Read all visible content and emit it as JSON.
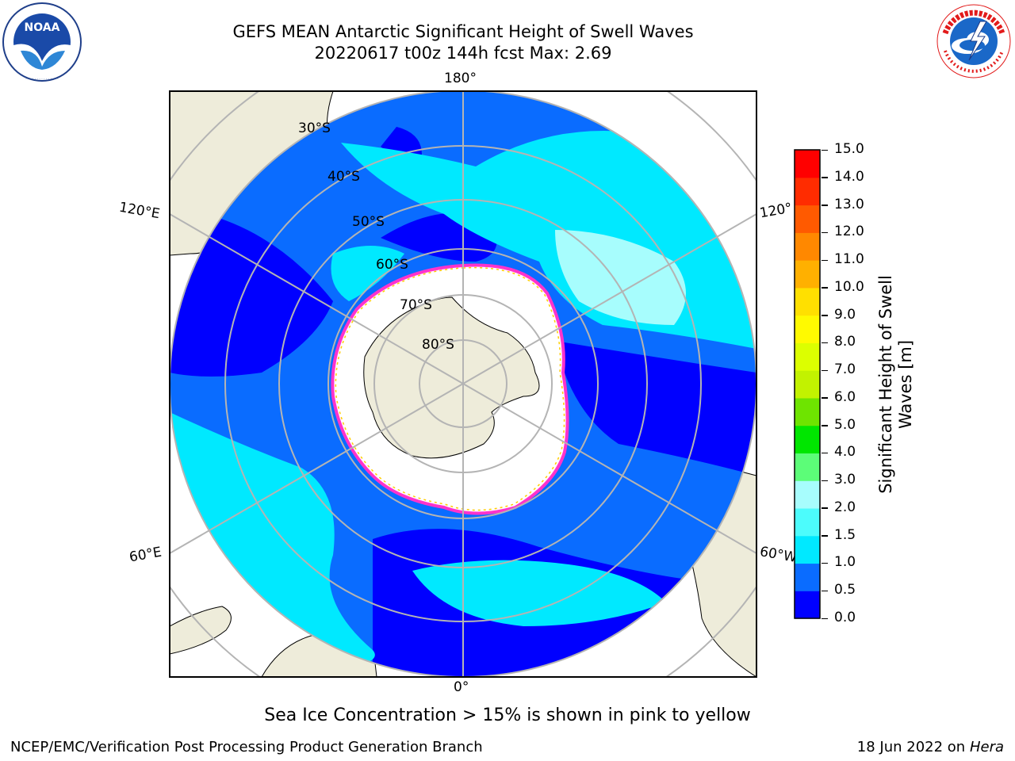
{
  "header": {
    "title_line1": "GEFS MEAN Antarctic Significant Height of Swell Waves",
    "title_line2": "20220617 t00z 144h fcst   Max: 2.69"
  },
  "logos": {
    "left": {
      "name": "noaa-logo",
      "text": "NOAA",
      "ring_text": "NATIONAL OCEANIC AND ATMOSPHERIC ADMINISTRATION · U.S. DEPARTMENT OF COMMERCE"
    },
    "right": {
      "name": "nws-logo",
      "ring_text": "NATIONAL WEATHER SERVICE"
    }
  },
  "map": {
    "projection": "south-polar-stereographic",
    "longitude_labels": {
      "top": "180°",
      "bottom": "0°",
      "upper_left": "120°E",
      "upper_right": "120°",
      "lower_left": "60°E",
      "lower_right": "60°W"
    },
    "latitude_labels": [
      "30°S",
      "40°S",
      "50°S",
      "60°S",
      "70°S",
      "80°S"
    ],
    "colors": {
      "land": "#eeecda",
      "coast": "#000000",
      "grid": "#b4b4b4",
      "ice_fill": "#ffffff",
      "ice_edge": [
        "#ff33cc",
        "#ff99ee",
        "#ffd966",
        "#ffcc00"
      ]
    }
  },
  "colorbar": {
    "label_line1": "Significant Height of Swell",
    "label_line2": "Waves [m]",
    "ticks": [
      "0.0",
      "0.5",
      "1.0",
      "1.5",
      "2.0",
      "3.0",
      "4.0",
      "5.0",
      "6.0",
      "7.0",
      "8.0",
      "9.0",
      "10.0",
      "11.0",
      "12.0",
      "13.0",
      "14.0",
      "15.0"
    ],
    "colors": [
      "#0000ff",
      "#0a6cff",
      "#00e9ff",
      "#4cfcfc",
      "#a7fdfd",
      "#5cfd78",
      "#00e600",
      "#6ee400",
      "#c2f200",
      "#dcff00",
      "#fffa00",
      "#ffe000",
      "#ffb000",
      "#ff8800",
      "#ff5a00",
      "#ff2c00",
      "#ff0000"
    ]
  },
  "notes": {
    "ice_note": "Sea Ice Concentration > 15% is shown in pink to yellow"
  },
  "footer": {
    "left": "NCEP/EMC/Verification Post Processing Product Generation Branch",
    "right_prefix": "18 Jun 2022 on",
    "right_host": "Hera"
  }
}
